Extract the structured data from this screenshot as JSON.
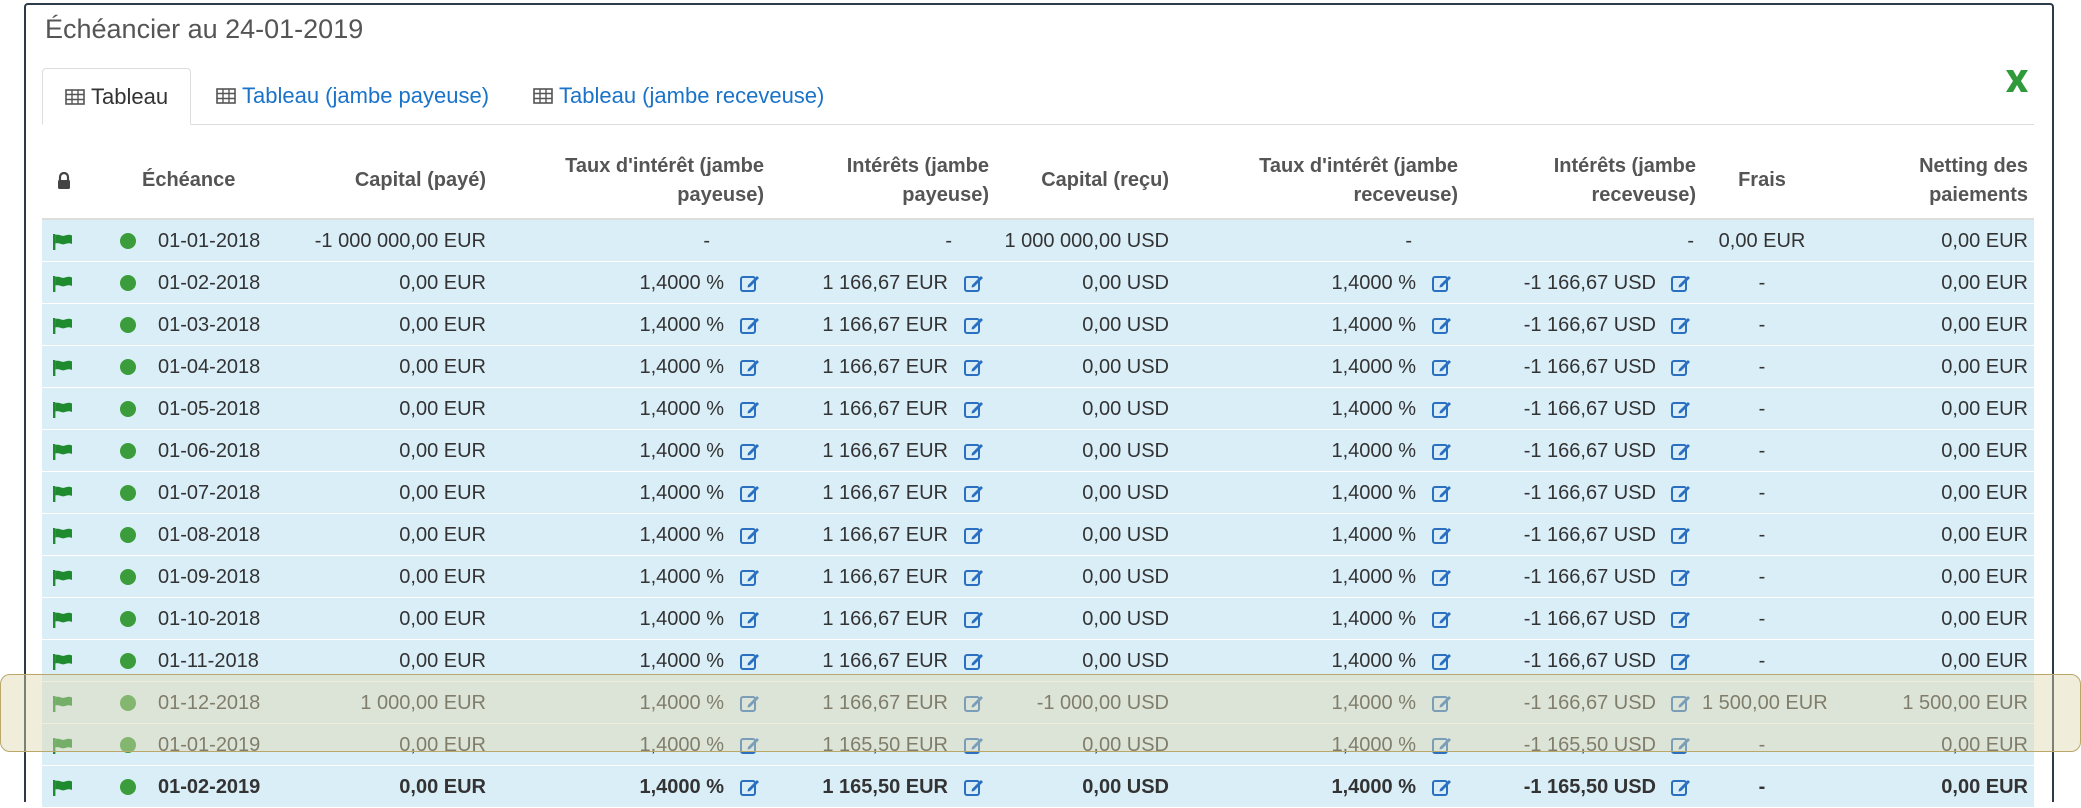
{
  "panel": {
    "title": "Échéancier au 24-01-2019"
  },
  "tabs": [
    {
      "label": "Tableau",
      "active": true
    },
    {
      "label": "Tableau (jambe payeuse)",
      "active": false
    },
    {
      "label": "Tableau (jambe receveuse)",
      "active": false
    }
  ],
  "icons": {
    "lock": "lock-icon",
    "flag": "flag-icon",
    "status": "status-dot",
    "edit": "edit-icon",
    "excel": "excel-export-icon",
    "grid": "table-icon"
  },
  "colors": {
    "row_bg": "#daeef8",
    "link": "#1a73c9",
    "flag": "#1e8c2e",
    "dot": "#3a9c3a",
    "edit": "#2a6fc0",
    "highlight": "#ded6b0"
  },
  "table": {
    "headers": {
      "echeance": "Échéance",
      "capital_paye": "Capital (payé)",
      "taux_payeuse_1": "Taux d'intérêt (jambe",
      "taux_payeuse_2": "payeuse)",
      "interets_payeuse_1": "Intérêts (jambe",
      "interets_payeuse_2": "payeuse)",
      "capital_recu": "Capital (reçu)",
      "taux_receveuse_1": "Taux d'intérêt (jambe",
      "taux_receveuse_2": "receveuse)",
      "interets_receveuse_1": "Intérêts (jambe",
      "interets_receveuse_2": "receveuse)",
      "frais": "Frais",
      "netting_1": "Netting des",
      "netting_2": "paiements"
    },
    "rows": [
      {
        "date": "01-01-2018",
        "capital_paye": "-1 000 000,00 EUR",
        "taux_p": "-",
        "int_p": "-",
        "capital_recu": "1 000 000,00 USD",
        "taux_r": "-",
        "int_r": "-",
        "frais": "0,00 EUR",
        "netting": "0,00 EUR",
        "editable": false,
        "bold": false
      },
      {
        "date": "01-02-2018",
        "capital_paye": "0,00 EUR",
        "taux_p": "1,4000 %",
        "int_p": "1 166,67 EUR",
        "capital_recu": "0,00 USD",
        "taux_r": "1,4000 %",
        "int_r": "-1 166,67 USD",
        "frais": "-",
        "netting": "0,00 EUR",
        "editable": true,
        "bold": false
      },
      {
        "date": "01-03-2018",
        "capital_paye": "0,00 EUR",
        "taux_p": "1,4000 %",
        "int_p": "1 166,67 EUR",
        "capital_recu": "0,00 USD",
        "taux_r": "1,4000 %",
        "int_r": "-1 166,67 USD",
        "frais": "-",
        "netting": "0,00 EUR",
        "editable": true,
        "bold": false
      },
      {
        "date": "01-04-2018",
        "capital_paye": "0,00 EUR",
        "taux_p": "1,4000 %",
        "int_p": "1 166,67 EUR",
        "capital_recu": "0,00 USD",
        "taux_r": "1,4000 %",
        "int_r": "-1 166,67 USD",
        "frais": "-",
        "netting": "0,00 EUR",
        "editable": true,
        "bold": false
      },
      {
        "date": "01-05-2018",
        "capital_paye": "0,00 EUR",
        "taux_p": "1,4000 %",
        "int_p": "1 166,67 EUR",
        "capital_recu": "0,00 USD",
        "taux_r": "1,4000 %",
        "int_r": "-1 166,67 USD",
        "frais": "-",
        "netting": "0,00 EUR",
        "editable": true,
        "bold": false
      },
      {
        "date": "01-06-2018",
        "capital_paye": "0,00 EUR",
        "taux_p": "1,4000 %",
        "int_p": "1 166,67 EUR",
        "capital_recu": "0,00 USD",
        "taux_r": "1,4000 %",
        "int_r": "-1 166,67 USD",
        "frais": "-",
        "netting": "0,00 EUR",
        "editable": true,
        "bold": false
      },
      {
        "date": "01-07-2018",
        "capital_paye": "0,00 EUR",
        "taux_p": "1,4000 %",
        "int_p": "1 166,67 EUR",
        "capital_recu": "0,00 USD",
        "taux_r": "1,4000 %",
        "int_r": "-1 166,67 USD",
        "frais": "-",
        "netting": "0,00 EUR",
        "editable": true,
        "bold": false
      },
      {
        "date": "01-08-2018",
        "capital_paye": "0,00 EUR",
        "taux_p": "1,4000 %",
        "int_p": "1 166,67 EUR",
        "capital_recu": "0,00 USD",
        "taux_r": "1,4000 %",
        "int_r": "-1 166,67 USD",
        "frais": "-",
        "netting": "0,00 EUR",
        "editable": true,
        "bold": false
      },
      {
        "date": "01-09-2018",
        "capital_paye": "0,00 EUR",
        "taux_p": "1,4000 %",
        "int_p": "1 166,67 EUR",
        "capital_recu": "0,00 USD",
        "taux_r": "1,4000 %",
        "int_r": "-1 166,67 USD",
        "frais": "-",
        "netting": "0,00 EUR",
        "editable": true,
        "bold": false
      },
      {
        "date": "01-10-2018",
        "capital_paye": "0,00 EUR",
        "taux_p": "1,4000 %",
        "int_p": "1 166,67 EUR",
        "capital_recu": "0,00 USD",
        "taux_r": "1,4000 %",
        "int_r": "-1 166,67 USD",
        "frais": "-",
        "netting": "0,00 EUR",
        "editable": true,
        "bold": false
      },
      {
        "date": "01-11-2018",
        "capital_paye": "0,00 EUR",
        "taux_p": "1,4000 %",
        "int_p": "1 166,67 EUR",
        "capital_recu": "0,00 USD",
        "taux_r": "1,4000 %",
        "int_r": "-1 166,67 USD",
        "frais": "-",
        "netting": "0,00 EUR",
        "editable": true,
        "bold": false
      },
      {
        "date": "01-12-2018",
        "capital_paye": "1 000,00 EUR",
        "taux_p": "1,4000 %",
        "int_p": "1 166,67 EUR",
        "capital_recu": "-1 000,00 USD",
        "taux_r": "1,4000 %",
        "int_r": "-1 166,67 USD",
        "frais": "1 500,00 EUR",
        "netting": "1 500,00 EUR",
        "editable": true,
        "bold": false
      },
      {
        "date": "01-01-2019",
        "capital_paye": "0,00 EUR",
        "taux_p": "1,4000 %",
        "int_p": "1 165,50 EUR",
        "capital_recu": "0,00 USD",
        "taux_r": "1,4000 %",
        "int_r": "-1 165,50 USD",
        "frais": "-",
        "netting": "0,00 EUR",
        "editable": true,
        "bold": false
      },
      {
        "date": "01-02-2019",
        "capital_paye": "0,00 EUR",
        "taux_p": "1,4000 %",
        "int_p": "1 165,50 EUR",
        "capital_recu": "0,00 USD",
        "taux_r": "1,4000 %",
        "int_r": "-1 165,50 USD",
        "frais": "-",
        "netting": "0,00 EUR",
        "editable": true,
        "bold": true
      }
    ]
  }
}
